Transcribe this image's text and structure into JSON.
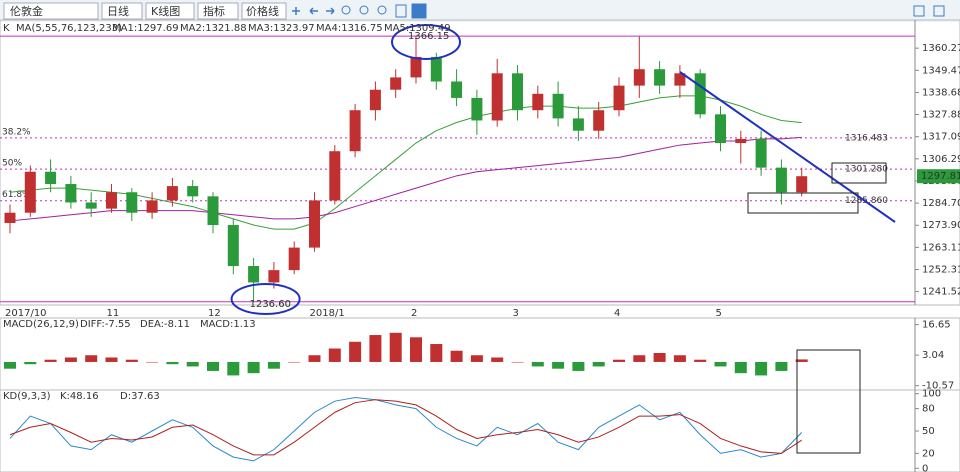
{
  "toolbar": {
    "symbol": "伦敦金",
    "period": "日线",
    "chart_kind": "K线图",
    "indicator": "指标",
    "price_line": "价格线"
  },
  "chart_data": [
    {
      "type": "candlestick",
      "label": "K",
      "ma_title": "MA(5,55,76,123,233)",
      "ma_legend": [
        {
          "text": "MA1:1297.69",
          "color": "#2a8ac8"
        },
        {
          "text": "MA2:1321.88",
          "color": "#b02020"
        },
        {
          "text": "MA3:1323.97",
          "color": "#3aa03a"
        },
        {
          "text": "MA4:1316.75",
          "color": "#a020a0"
        },
        {
          "text": "MA5:1309.49",
          "color": "#b08030"
        }
      ],
      "categories": [
        "2017/10",
        null,
        null,
        null,
        null,
        "11",
        null,
        null,
        null,
        null,
        "12",
        null,
        null,
        null,
        null,
        "2018/1",
        null,
        null,
        null,
        null,
        "2",
        null,
        null,
        null,
        null,
        "3",
        null,
        null,
        null,
        null,
        "4",
        null,
        null,
        null,
        null,
        "5",
        null,
        null,
        null,
        null
      ],
      "candles": [
        [
          1275,
          1284,
          1270,
          1280
        ],
        [
          1280,
          1303,
          1278,
          1300
        ],
        [
          1300,
          1306,
          1290,
          1294
        ],
        [
          1294,
          1298,
          1282,
          1285
        ],
        [
          1285,
          1290,
          1278,
          1282
        ],
        [
          1282,
          1294,
          1280,
          1290
        ],
        [
          1290,
          1292,
          1276,
          1280
        ],
        [
          1280,
          1290,
          1277,
          1286
        ],
        [
          1286,
          1297,
          1283,
          1293
        ],
        [
          1293,
          1296,
          1285,
          1288
        ],
        [
          1288,
          1290,
          1270,
          1274
        ],
        [
          1274,
          1277,
          1250,
          1254
        ],
        [
          1254,
          1258,
          1236.6,
          1246
        ],
        [
          1246,
          1256,
          1243,
          1252
        ],
        [
          1252,
          1266,
          1250,
          1263
        ],
        [
          1263,
          1290,
          1261,
          1286
        ],
        [
          1286,
          1313,
          1284,
          1310
        ],
        [
          1310,
          1333,
          1307,
          1330
        ],
        [
          1330,
          1344,
          1325,
          1340
        ],
        [
          1340,
          1350,
          1336,
          1346
        ],
        [
          1346,
          1366.15,
          1343,
          1356
        ],
        [
          1356,
          1358,
          1340,
          1344
        ],
        [
          1344,
          1350,
          1332,
          1336
        ],
        [
          1336,
          1340,
          1318,
          1325
        ],
        [
          1325,
          1355,
          1322,
          1348
        ],
        [
          1348,
          1352,
          1325,
          1330
        ],
        [
          1330,
          1342,
          1326,
          1338
        ],
        [
          1338,
          1344,
          1322,
          1326
        ],
        [
          1326,
          1332,
          1315,
          1320
        ],
        [
          1320,
          1334,
          1316,
          1330
        ],
        [
          1330,
          1346,
          1327,
          1342
        ],
        [
          1342,
          1366,
          1336,
          1350
        ],
        [
          1350,
          1354,
          1338,
          1342
        ],
        [
          1342,
          1352,
          1336,
          1348
        ],
        [
          1348,
          1350,
          1326,
          1328
        ],
        [
          1328,
          1332,
          1310,
          1314
        ],
        [
          1314,
          1320,
          1304,
          1316
        ],
        [
          1316,
          1320,
          1298,
          1302
        ],
        [
          1302,
          1306,
          1284,
          1290
        ],
        [
          1290,
          1302,
          1288,
          1297.81
        ]
      ],
      "up_color": "#c03030",
      "down_color": "#2a9a3a",
      "series": [
        {
          "name": "MA3",
          "color": "#3aa03a",
          "values": [
            1290,
            1291,
            1292,
            1292,
            1291,
            1290,
            1289,
            1287,
            1285,
            1283,
            1280,
            1277,
            1274,
            1272,
            1272,
            1275,
            1282,
            1290,
            1298,
            1306,
            1314,
            1320,
            1324,
            1327,
            1329,
            1331,
            1332,
            1332,
            1331,
            1331,
            1332,
            1334,
            1336,
            1337,
            1337,
            1335,
            1332,
            1328,
            1325,
            1323.97
          ]
        },
        {
          "name": "MA4",
          "color": "#a020a0",
          "values": [
            1276,
            1277,
            1278,
            1279,
            1280,
            1281,
            1281,
            1281,
            1281,
            1281,
            1280,
            1279,
            1278,
            1277,
            1277,
            1278,
            1280,
            1283,
            1286,
            1289,
            1292,
            1295,
            1298,
            1300,
            1301,
            1302,
            1303,
            1304,
            1305,
            1306,
            1307,
            1309,
            1311,
            1313,
            1314,
            1315,
            1315,
            1316,
            1316,
            1316.75
          ]
        }
      ],
      "high": {
        "value": 1366.15
      },
      "low": {
        "value": 1236.6,
        "label": "1236.60"
      },
      "fib": [
        {
          "name": "38.2%",
          "value": 1316.483
        },
        {
          "name": "50%",
          "value": 1301.28,
          "label": "1301.280"
        },
        {
          "name": "61.8%",
          "value": 1285.86,
          "label": "1285.860"
        }
      ],
      "ylim": [
        1235,
        1374
      ],
      "yticks": [
        1360.27,
        1349.47,
        1338.68,
        1327.88,
        1317.09,
        1306.29,
        {
          "value": 1295.5,
          "label": "1295.50"
        },
        {
          "value": 1284.7,
          "label": "1284.70"
        },
        {
          "value": 1273.9,
          "label": "1273.90"
        },
        1263.11,
        1252.31,
        1241.52
      ]
    },
    {
      "type": "bar",
      "title": "MACD(26,12,9)",
      "legend": [
        {
          "text": "DIFF:-7.55",
          "color": "#2a8ac8"
        },
        {
          "text": "DEA:-8.11",
          "color": "#b02020"
        },
        {
          "text": "MACD:1.13",
          "color": "#3aa03a"
        }
      ],
      "values": [
        -3,
        -1,
        1,
        2,
        3,
        2,
        1,
        0,
        -1,
        -2,
        -4,
        -6,
        -5,
        -3,
        0,
        3,
        6,
        9,
        12,
        13,
        11,
        8,
        5,
        3,
        2,
        0,
        -2,
        -3,
        -4,
        -2,
        1,
        3,
        4,
        3,
        1,
        -2,
        -5,
        -6,
        -4,
        1.13
      ],
      "up_color": "#c03030",
      "down_color": "#2a9a3a",
      "ylim": [
        -12.5,
        19.6
      ],
      "yticks": [
        16.65,
        3.04,
        -10.57
      ]
    },
    {
      "type": "line",
      "title": "KD(9,3,3)",
      "series": [
        {
          "name": "K:48.16",
          "color": "#2a8ac8",
          "values": [
            40,
            70,
            60,
            30,
            25,
            45,
            35,
            50,
            65,
            55,
            30,
            15,
            10,
            25,
            50,
            75,
            90,
            95,
            92,
            85,
            80,
            55,
            40,
            30,
            55,
            45,
            60,
            35,
            25,
            55,
            70,
            85,
            65,
            75,
            45,
            20,
            25,
            15,
            20,
            48.16
          ]
        },
        {
          "name": "D:37.63",
          "color": "#b02020",
          "values": [
            45,
            55,
            60,
            48,
            35,
            40,
            38,
            42,
            55,
            58,
            45,
            30,
            18,
            18,
            35,
            55,
            75,
            88,
            92,
            90,
            85,
            70,
            52,
            40,
            45,
            48,
            52,
            45,
            35,
            42,
            55,
            70,
            70,
            72,
            60,
            40,
            30,
            22,
            20,
            37.63
          ]
        }
      ],
      "ylim": [
        -5,
        105
      ],
      "yticks": [
        100,
        80,
        50,
        20,
        0
      ]
    }
  ]
}
